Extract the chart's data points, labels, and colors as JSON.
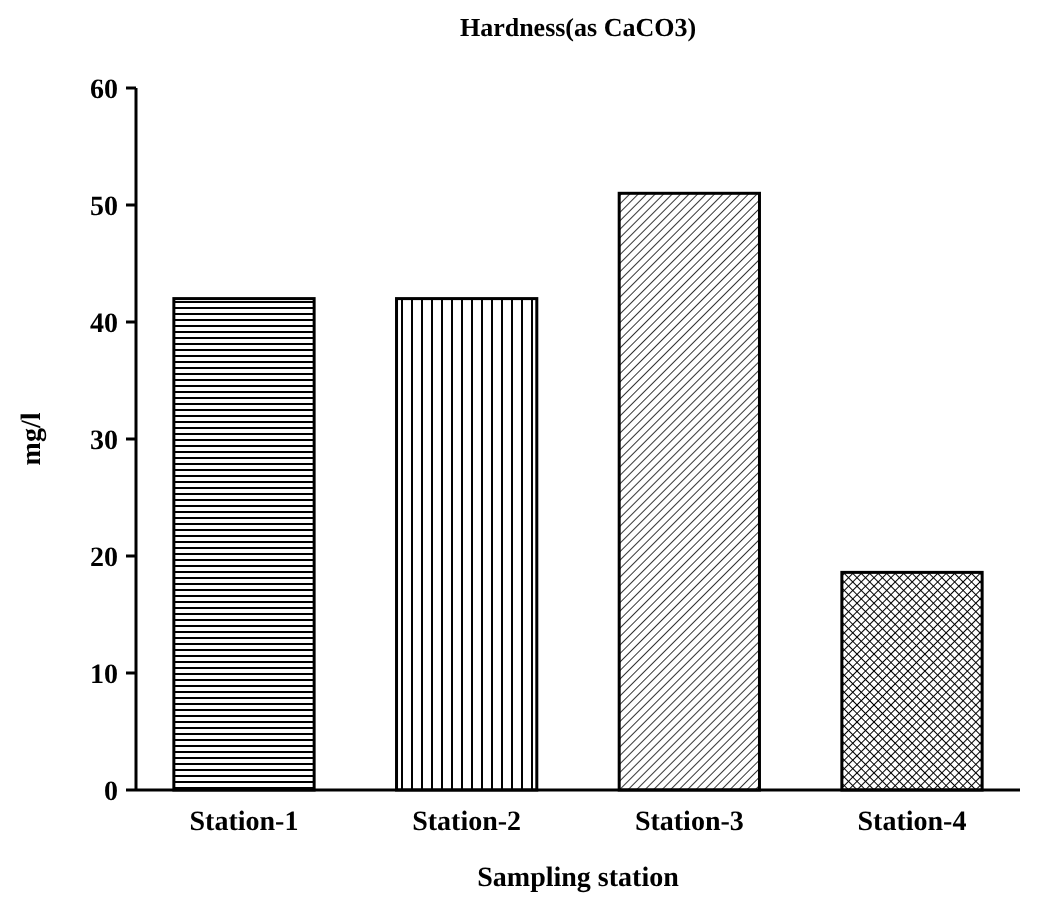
{
  "chart_data": {
    "type": "bar",
    "title": "Hardness(as CaCO3)",
    "xlabel": "Sampling station",
    "ylabel": "mg/l",
    "categories": [
      "Station-1",
      "Station-2",
      "Station-3",
      "Station-4"
    ],
    "values": [
      42,
      42,
      51,
      18.6
    ],
    "color": "#000000",
    "ylim": [
      0,
      60
    ],
    "yticks": [
      0,
      10,
      20,
      30,
      40,
      50,
      60
    ]
  }
}
